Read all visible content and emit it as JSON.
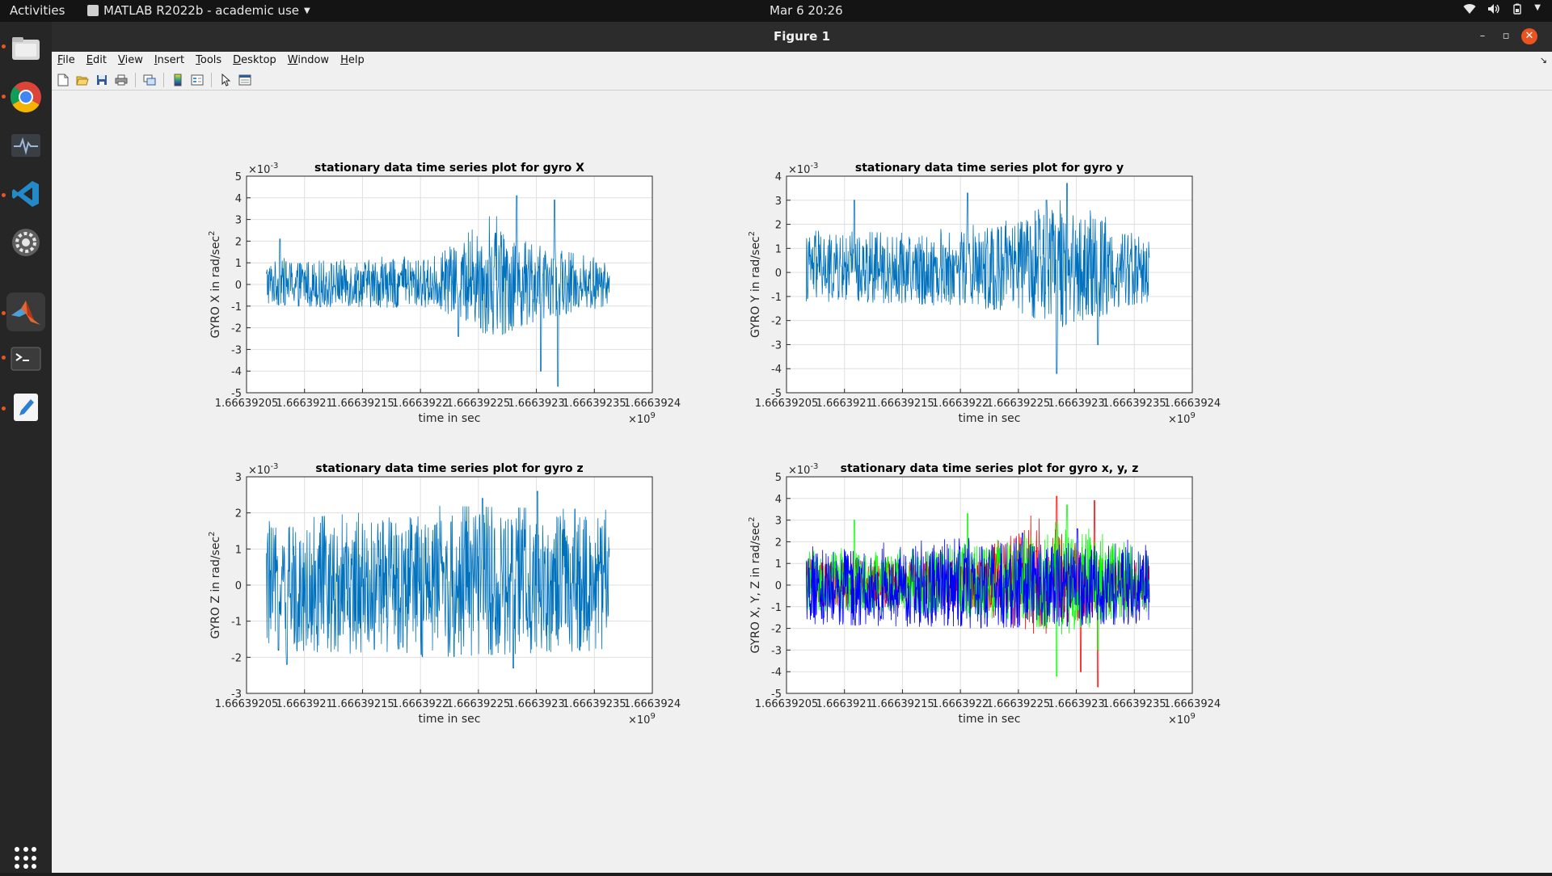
{
  "topbar": {
    "activities": "Activities",
    "app_name": "MATLAB R2022b - academic use",
    "clock": "Mar 6  20:26",
    "tray_icons": [
      "wifi-icon",
      "volume-icon",
      "battery-icon",
      "chevron-down-icon"
    ]
  },
  "dock": {
    "items": [
      "files-icon",
      "chrome-icon",
      "system-monitor-icon",
      "vscode-icon",
      "settings-icon",
      "matlab-icon",
      "terminal-icon",
      "text-editor-icon"
    ],
    "grid": "show-applications-icon"
  },
  "window": {
    "title": "Figure 1",
    "menu": [
      "File",
      "Edit",
      "View",
      "Insert",
      "Tools",
      "Desktop",
      "Window",
      "Help"
    ],
    "toolbar": [
      "new-figure-icon",
      "open-file-icon",
      "save-icon",
      "print-icon",
      "link-plot-icon",
      "insert-colorbar-icon",
      "insert-legend-icon",
      "edit-plot-icon",
      "property-inspector-icon"
    ]
  },
  "colors": {
    "line_default": "#0072bd",
    "red": "#ff0000",
    "green": "#00ff00",
    "blue": "#0000ff",
    "axes_bg": "#ffffff",
    "figure_bg": "#f0f0f0",
    "close_button": "#e95420"
  },
  "chart_data": [
    {
      "type": "line",
      "title": "stationary data time series plot for gyro X",
      "xlabel": "time in sec",
      "ylabel": "GYRO X in rad/sec",
      "ylabel_sup": "2",
      "y_exponent": "×10",
      "y_exponent_sup": "-3",
      "x_exponent": "×10",
      "x_exponent_sup": "9",
      "xlim": [
        1.66639205,
        1.6663924
      ],
      "ylim": [
        -5,
        5
      ],
      "xticks": [
        "1.66639205",
        "1.6663921",
        "1.66639215",
        "1.6663922",
        "1.66639225",
        "1.6663923",
        "1.66639235",
        "1.6663924"
      ],
      "yticks": [
        "5",
        "4",
        "3",
        "2",
        "1",
        "0",
        "-1",
        "-2",
        "-3",
        "-4",
        "-5"
      ],
      "grid": true,
      "series": [
        {
          "color": "#0072bd",
          "x_range": [
            1.666392067,
            1.666392363
          ],
          "band": [
            [
              0,
              -1.0,
              1.1
            ],
            [
              0.5,
              -1.1,
              1.2
            ],
            [
              0.66,
              -2.5,
              3.0
            ],
            [
              0.8,
              -1.6,
              1.6
            ],
            [
              1,
              -1.0,
              1.0
            ]
          ],
          "peaks": [
            [
              0.04,
              2.1
            ],
            [
              0.56,
              -2.4
            ],
            [
              0.73,
              4.1
            ],
            [
              0.8,
              -4.0
            ],
            [
              0.84,
              3.9
            ],
            [
              0.85,
              -4.7
            ]
          ]
        }
      ]
    },
    {
      "type": "line",
      "title": "stationary data time series plot for gyro y",
      "xlabel": "time in sec",
      "ylabel": "GYRO Y in rad/sec",
      "ylabel_sup": "2",
      "y_exponent": "×10",
      "y_exponent_sup": "-3",
      "x_exponent": "×10",
      "x_exponent_sup": "9",
      "xlim": [
        1.66639205,
        1.6663924
      ],
      "ylim": [
        -5,
        4
      ],
      "xticks": [
        "1.66639205",
        "1.6663921",
        "1.66639215",
        "1.6663922",
        "1.66639225",
        "1.6663923",
        "1.66639235",
        "1.6663924"
      ],
      "yticks": [
        "4",
        "3",
        "2",
        "1",
        "0",
        "-1",
        "-2",
        "-3",
        "-4",
        "-5"
      ],
      "grid": true,
      "series": [
        {
          "color": "#0072bd",
          "x_range": [
            1.666392067,
            1.666392363
          ],
          "band": [
            [
              0,
              -1.2,
              1.6
            ],
            [
              0.3,
              -1.3,
              1.5
            ],
            [
              0.6,
              -1.6,
              2.0
            ],
            [
              0.75,
              -2.3,
              2.8
            ],
            [
              1,
              -1.2,
              1.4
            ]
          ],
          "peaks": [
            [
              0.14,
              3.0
            ],
            [
              0.47,
              3.3
            ],
            [
              0.7,
              3.0
            ],
            [
              0.73,
              -4.2
            ],
            [
              0.76,
              3.7
            ],
            [
              0.85,
              -3.0
            ]
          ]
        }
      ]
    },
    {
      "type": "line",
      "title": "stationary data time series plot for gyro z",
      "xlabel": "time in sec",
      "ylabel": "GYRO Z in rad/sec",
      "ylabel_sup": "2",
      "y_exponent": "×10",
      "y_exponent_sup": "-3",
      "x_exponent": "×10",
      "x_exponent_sup": "9",
      "xlim": [
        1.66639205,
        1.6663924
      ],
      "ylim": [
        -3,
        3
      ],
      "xticks": [
        "1.66639205",
        "1.6663921",
        "1.66639215",
        "1.6663922",
        "1.66639225",
        "1.6663923",
        "1.66639235",
        "1.6663924"
      ],
      "yticks": [
        "3",
        "2",
        "1",
        "0",
        "-1",
        "-2",
        "-3"
      ],
      "grid": true,
      "series": [
        {
          "color": "#0072bd",
          "x_range": [
            1.666392067,
            1.666392363
          ],
          "band": [
            [
              0,
              -1.8,
              1.6
            ],
            [
              0.5,
              -2.0,
              2.0
            ],
            [
              1,
              -1.8,
              1.9
            ]
          ],
          "peaks": [
            [
              0.63,
              2.4
            ],
            [
              0.72,
              -2.3
            ],
            [
              0.79,
              2.6
            ],
            [
              0.06,
              -2.2
            ]
          ]
        }
      ]
    },
    {
      "type": "line",
      "title": "stationary data time series plot for gyro x, y, z",
      "xlabel": "time in sec",
      "ylabel": "GYRO X, Y, Z in rad/sec",
      "ylabel_sup": "2",
      "y_exponent": "×10",
      "y_exponent_sup": "-3",
      "x_exponent": "×10",
      "x_exponent_sup": "9",
      "xlim": [
        1.66639205,
        1.6663924
      ],
      "ylim": [
        -5,
        5
      ],
      "xticks": [
        "1.66639205",
        "1.6663921",
        "1.66639215",
        "1.6663922",
        "1.66639225",
        "1.6663923",
        "1.66639235",
        "1.6663924"
      ],
      "yticks": [
        "5",
        "4",
        "3",
        "2",
        "1",
        "0",
        "-1",
        "-2",
        "-3",
        "-4",
        "-5"
      ],
      "grid": true,
      "series": [
        {
          "color": "#ff0000",
          "x_range": [
            1.666392067,
            1.666392363
          ],
          "band": [
            [
              0,
              -1.0,
              1.1
            ],
            [
              0.5,
              -1.1,
              1.2
            ],
            [
              0.66,
              -2.5,
              3.0
            ],
            [
              0.8,
              -1.6,
              1.6
            ],
            [
              1,
              -1.0,
              1.0
            ]
          ],
          "peaks": [
            [
              0.73,
              4.1
            ],
            [
              0.8,
              -4.0
            ],
            [
              0.84,
              3.9
            ],
            [
              0.85,
              -4.7
            ]
          ]
        },
        {
          "color": "#00ff00",
          "x_range": [
            1.666392067,
            1.666392363
          ],
          "band": [
            [
              0,
              -1.2,
              1.6
            ],
            [
              0.3,
              -1.3,
              1.5
            ],
            [
              0.6,
              -1.6,
              2.0
            ],
            [
              0.75,
              -2.3,
              2.8
            ],
            [
              1,
              -1.2,
              1.4
            ]
          ],
          "peaks": [
            [
              0.14,
              3.0
            ],
            [
              0.47,
              3.3
            ],
            [
              0.73,
              -4.2
            ],
            [
              0.76,
              3.7
            ],
            [
              0.85,
              -3.0
            ]
          ]
        },
        {
          "color": "#0000ff",
          "x_range": [
            1.666392067,
            1.666392363
          ],
          "band": [
            [
              0,
              -1.8,
              1.6
            ],
            [
              0.5,
              -2.0,
              2.0
            ],
            [
              1,
              -1.8,
              1.9
            ]
          ],
          "peaks": [
            [
              0.63,
              2.4
            ],
            [
              0.79,
              2.6
            ]
          ]
        }
      ]
    }
  ]
}
